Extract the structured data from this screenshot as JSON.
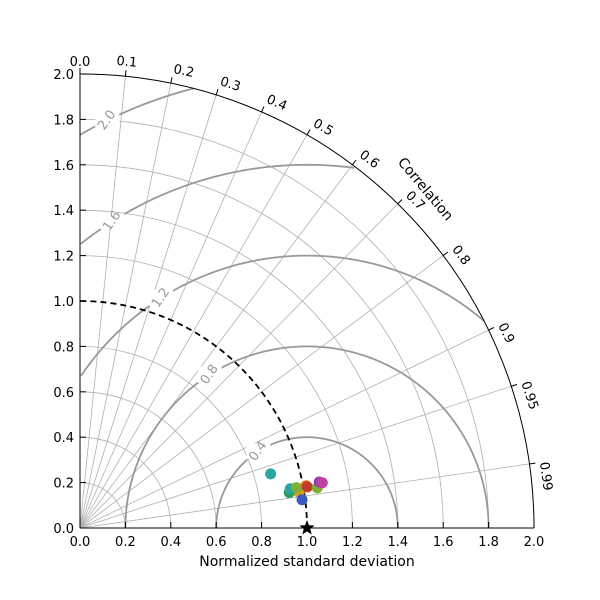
{
  "chart_data": {
    "type": "scatter",
    "subtype": "taylor-diagram",
    "xlabel": "Normalized standard deviation",
    "correlation_label": "Correlation",
    "std_range": [
      0,
      2.0
    ],
    "std_ticks": [
      "0.0",
      "0.2",
      "0.4",
      "0.6",
      "0.8",
      "1.0",
      "1.2",
      "1.4",
      "1.6",
      "1.8",
      "2.0"
    ],
    "correlation_ticks": [
      {
        "value": 0.0,
        "label": "0.0"
      },
      {
        "value": 0.1,
        "label": "0.1"
      },
      {
        "value": 0.2,
        "label": "0.2"
      },
      {
        "value": 0.3,
        "label": "0.3"
      },
      {
        "value": 0.4,
        "label": "0.4"
      },
      {
        "value": 0.5,
        "label": "0.5"
      },
      {
        "value": 0.6,
        "label": "0.6"
      },
      {
        "value": 0.7,
        "label": "0.7"
      },
      {
        "value": 0.8,
        "label": "0.8"
      },
      {
        "value": 0.9,
        "label": "0.9"
      },
      {
        "value": 0.95,
        "label": "0.95"
      },
      {
        "value": 0.99,
        "label": "0.99"
      }
    ],
    "std_arcs": [
      0.2,
      0.4,
      0.6,
      0.8,
      1.0,
      1.2,
      1.4,
      1.6,
      1.8
    ],
    "rms_contours": [
      {
        "value": 0.4,
        "label": "0.4"
      },
      {
        "value": 0.8,
        "label": "0.8"
      },
      {
        "value": 1.2,
        "label": "1.2"
      },
      {
        "value": 1.6,
        "label": "1.6"
      },
      {
        "value": 2.0,
        "label": "2.0"
      }
    ],
    "reference_std": 1.0,
    "grid": true,
    "colors": {
      "grid": "#b0b0b0",
      "rms": "#999999",
      "reference": "#000000"
    },
    "points": [
      {
        "std": 0.873,
        "corr": 0.962,
        "color": "#2aa5a5"
      },
      {
        "std": 0.978,
        "corr": 0.987,
        "color": "#d4a017"
      },
      {
        "std": 0.935,
        "corr": 0.986,
        "color": "#2ca05a"
      },
      {
        "std": 0.942,
        "corr": 0.983,
        "color": "#2aa5a5"
      },
      {
        "std": 0.97,
        "corr": 0.983,
        "color": "#7fb035"
      },
      {
        "std": 0.986,
        "corr": 0.992,
        "color": "#3b5cc4"
      },
      {
        "std": 1.013,
        "corr": 0.983,
        "color": "#e06a1e"
      },
      {
        "std": 1.018,
        "corr": 0.984,
        "color": "#c0392b"
      },
      {
        "std": 1.06,
        "corr": 0.986,
        "color": "#7fb035"
      },
      {
        "std": 1.073,
        "corr": 0.982,
        "color": "#8e44ad"
      },
      {
        "std": 1.086,
        "corr": 0.983,
        "color": "#c040a0"
      }
    ]
  }
}
